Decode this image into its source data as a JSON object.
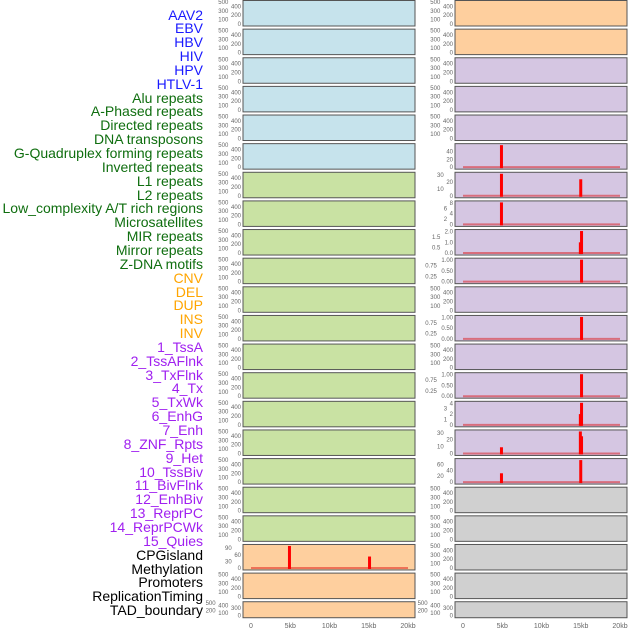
{
  "groups": {
    "virus": {
      "color": "#1a1aff",
      "fill": "#c6e3ec"
    },
    "repeat": {
      "color": "#0f6e0f",
      "fill": "#c9e2a3"
    },
    "sv": {
      "color": "#ffa500",
      "fill": "#fecf9e"
    },
    "chromhmm": {
      "color": "#a020f0",
      "fill": "#d5c6e2"
    },
    "other": {
      "color": "#000000",
      "fill": "#d0d0d0"
    }
  },
  "labels": [
    {
      "text": "AAV2",
      "group": "virus"
    },
    {
      "text": "EBV",
      "group": "virus"
    },
    {
      "text": "HBV",
      "group": "virus"
    },
    {
      "text": "HIV",
      "group": "virus"
    },
    {
      "text": "HPV",
      "group": "virus"
    },
    {
      "text": "HTLV-1",
      "group": "virus"
    },
    {
      "text": "Alu repeats",
      "group": "repeat"
    },
    {
      "text": "A-Phased repeats",
      "group": "repeat"
    },
    {
      "text": "Directed repeats",
      "group": "repeat"
    },
    {
      "text": "DNA transposons",
      "group": "repeat"
    },
    {
      "text": "G-Quadruplex forming repeats",
      "group": "repeat"
    },
    {
      "text": "Inverted repeats",
      "group": "repeat"
    },
    {
      "text": "L1 repeats",
      "group": "repeat"
    },
    {
      "text": "L2 repeats",
      "group": "repeat"
    },
    {
      "text": "Low_complexity A/T rich regions",
      "group": "repeat"
    },
    {
      "text": "Microsatellites",
      "group": "repeat"
    },
    {
      "text": "MIR repeats",
      "group": "repeat"
    },
    {
      "text": "Mirror repeats",
      "group": "repeat"
    },
    {
      "text": "Z-DNA motifs",
      "group": "repeat"
    },
    {
      "text": "CNV",
      "group": "sv"
    },
    {
      "text": "DEL",
      "group": "sv"
    },
    {
      "text": "DUP",
      "group": "sv"
    },
    {
      "text": "INS",
      "group": "sv"
    },
    {
      "text": "INV",
      "group": "sv"
    },
    {
      "text": "1_TssA",
      "group": "chromhmm"
    },
    {
      "text": "2_TssAFlnk",
      "group": "chromhmm"
    },
    {
      "text": "3_TxFlnk",
      "group": "chromhmm"
    },
    {
      "text": "4_Tx",
      "group": "chromhmm"
    },
    {
      "text": "5_TxWk",
      "group": "chromhmm"
    },
    {
      "text": "6_EnhG",
      "group": "chromhmm"
    },
    {
      "text": "7_Enh",
      "group": "chromhmm"
    },
    {
      "text": "8_ZNF_Rpts",
      "group": "chromhmm"
    },
    {
      "text": "9_Het",
      "group": "chromhmm"
    },
    {
      "text": "10_TssBiv",
      "group": "chromhmm"
    },
    {
      "text": "11_BivFlnk",
      "group": "chromhmm"
    },
    {
      "text": "12_EnhBiv",
      "group": "chromhmm"
    },
    {
      "text": "13_ReprPC",
      "group": "chromhmm"
    },
    {
      "text": "14_ReprPCWk",
      "group": "chromhmm"
    },
    {
      "text": "15_Quies",
      "group": "chromhmm"
    },
    {
      "text": "CPGisland",
      "group": "other"
    },
    {
      "text": "Methylation",
      "group": "other"
    },
    {
      "text": "Promoters",
      "group": "other"
    },
    {
      "text": "ReplicationTiming",
      "group": "other"
    },
    {
      "text": "TAD_boundary",
      "group": "other"
    }
  ],
  "chart_data": {
    "type": "bar",
    "title": "",
    "x_ticks": [
      "0",
      "5kb",
      "10kb",
      "15kb",
      "20kb"
    ],
    "x_tick_values": [
      0,
      5,
      10,
      15,
      20
    ],
    "xlim": [
      0,
      20
    ],
    "bar_color": "#ff0000",
    "empty_ylim": [
      0,
      500
    ],
    "empty_yticks": [
      "0",
      "100",
      "200",
      "300",
      "400",
      "500"
    ],
    "panels": [
      {
        "label": "AAV2",
        "bars": []
      },
      {
        "label": "EBV",
        "bars": []
      },
      {
        "label": "HBV",
        "bars": []
      },
      {
        "label": "HIV",
        "bars": []
      },
      {
        "label": "HPV",
        "bars": []
      },
      {
        "label": "HTLV-1",
        "bars": []
      },
      {
        "label": "Alu repeats",
        "bars": []
      },
      {
        "label": "A-Phased repeats",
        "bars": []
      },
      {
        "label": "Directed repeats",
        "bars": []
      },
      {
        "label": "DNA transposons",
        "bars": []
      },
      {
        "label": "G-Quadruplex forming repeats",
        "bars": []
      },
      {
        "label": "Inverted repeats",
        "bars": []
      },
      {
        "label": "L1 repeats",
        "bars": []
      },
      {
        "label": "L2 repeats",
        "bars": []
      },
      {
        "label": "Low_complexity A/T rich regions",
        "bars": []
      },
      {
        "label": "Microsatellites",
        "bars": []
      },
      {
        "label": "MIR repeats",
        "bars": []
      },
      {
        "label": "Mirror repeats",
        "bars": []
      },
      {
        "label": "Z-DNA motifs",
        "bars": []
      },
      {
        "label": "CNV",
        "ymax": 100,
        "yticks": [
          "0",
          "30",
          "60",
          "90"
        ],
        "bars": [
          {
            "x": 4.9,
            "y": 100
          },
          {
            "x": 15.1,
            "y": 52
          }
        ]
      },
      {
        "label": "DEL",
        "bars": []
      },
      {
        "label": "DUP",
        "bars": []
      },
      {
        "label": "INS",
        "bars": []
      },
      {
        "label": "INV",
        "bars": []
      },
      {
        "label": "1_TssA",
        "bars": []
      },
      {
        "label": "2_TssAFlnk",
        "bars": []
      },
      {
        "label": "3_TxFlnk",
        "bars": []
      },
      {
        "label": "4_Tx",
        "ymax": 57,
        "yticks": [
          "0",
          "20",
          "40"
        ],
        "bars": [
          {
            "x": 4.9,
            "y": 57
          }
        ]
      },
      {
        "label": "5_TxWk",
        "ymax": 32,
        "yticks": [
          "0",
          "10",
          "20",
          "30"
        ],
        "bars": [
          {
            "x": 4.9,
            "y": 32
          },
          {
            "x": 15.0,
            "y": 24
          }
        ]
      },
      {
        "label": "6_EnhG",
        "ymax": 8.2,
        "yticks": [
          "0",
          "2",
          "4",
          "6",
          "8"
        ],
        "bars": [
          {
            "x": 4.9,
            "y": 8.2
          }
        ]
      },
      {
        "label": "7_Enh",
        "ymax": 2.05,
        "yticks": [
          "0.0",
          "0.5",
          "1.0",
          "1.5",
          "2.0"
        ],
        "bars": [
          {
            "x": 14.95,
            "y": 1.0
          },
          {
            "x": 15.1,
            "y": 2.05
          }
        ]
      },
      {
        "label": "8_ZNF_Rpts",
        "ymax": 1.02,
        "yticks": [
          "0.00",
          "0.25",
          "0.50",
          "0.75",
          "1.00"
        ],
        "bars": [
          {
            "x": 15.1,
            "y": 1.02
          }
        ]
      },
      {
        "label": "9_Het",
        "bars": []
      },
      {
        "label": "10_TssBiv",
        "ymax": 1.02,
        "yticks": [
          "0.00",
          "0.25",
          "0.50",
          "0.75",
          "1.00"
        ],
        "bars": [
          {
            "x": 15.1,
            "y": 1.02
          }
        ]
      },
      {
        "label": "11_BivFlnk",
        "bars": []
      },
      {
        "label": "12_EnhBiv",
        "ymax": 1.02,
        "yticks": [
          "0.00",
          "0.25",
          "0.50",
          "0.75",
          "1.00"
        ],
        "bars": [
          {
            "x": 15.1,
            "y": 1.02
          }
        ]
      },
      {
        "label": "13_ReprPC",
        "ymax": 4.1,
        "yticks": [
          "0",
          "1",
          "2",
          "3",
          "4"
        ],
        "bars": [
          {
            "x": 14.95,
            "y": 2
          },
          {
            "x": 15.1,
            "y": 4.1
          }
        ]
      },
      {
        "label": "14_ReprPCWk",
        "ymax": 32,
        "yticks": [
          "0",
          "10",
          "20",
          "30"
        ],
        "bars": [
          {
            "x": 4.9,
            "y": 9
          },
          {
            "x": 14.95,
            "y": 32
          },
          {
            "x": 15.1,
            "y": 25
          }
        ]
      },
      {
        "label": "15_Quies",
        "ymax": 75,
        "yticks": [
          "0",
          "20",
          "40",
          "60"
        ],
        "bars": [
          {
            "x": 4.9,
            "y": 30
          },
          {
            "x": 15.0,
            "y": 75
          }
        ]
      },
      {
        "label": "CPGisland",
        "bars": []
      },
      {
        "label": "Methylation",
        "bars": []
      },
      {
        "label": "Promoters",
        "bars": []
      },
      {
        "label": "ReplicationTiming",
        "bars": []
      },
      {
        "label": "TAD_boundary",
        "bars": []
      }
    ]
  }
}
